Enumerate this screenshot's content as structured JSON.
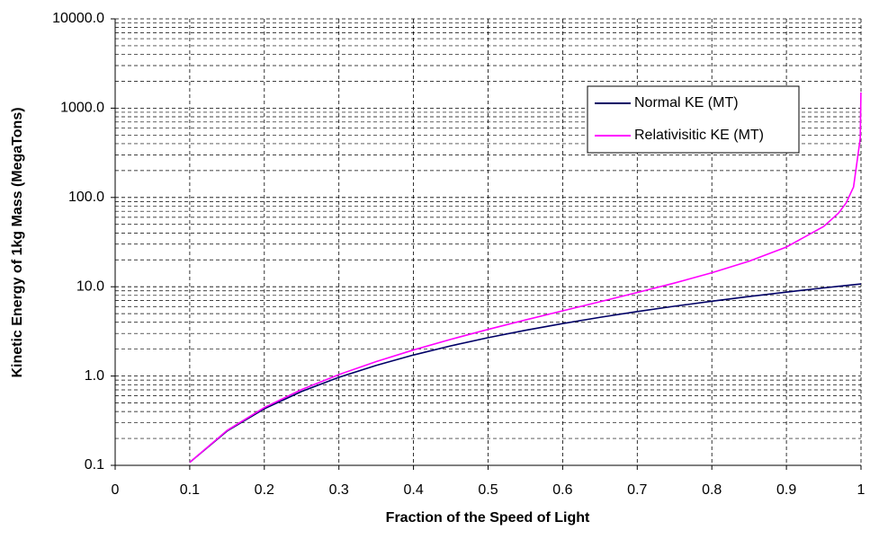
{
  "chart_data": {
    "type": "line",
    "x_label": "Fraction of the Speed of Light",
    "y_label": "Kinetic Energy of 1kg Mass (MegaTons)",
    "x": [
      0.1,
      0.15,
      0.2,
      0.25,
      0.3,
      0.35,
      0.4,
      0.45,
      0.5,
      0.55,
      0.6,
      0.65,
      0.7,
      0.75,
      0.8,
      0.85,
      0.9,
      0.95,
      0.97,
      0.98,
      0.99,
      0.999,
      0.9999
    ],
    "series": [
      {
        "name": "Normal KE (MT)",
        "color": "#000066",
        "values": [
          0.108,
          0.242,
          0.43,
          0.672,
          0.968,
          1.317,
          1.721,
          2.178,
          2.689,
          3.253,
          3.872,
          4.544,
          5.27,
          6.05,
          6.883,
          7.771,
          8.712,
          9.706,
          10.119,
          10.329,
          10.541,
          10.733,
          10.753
        ]
      },
      {
        "name": "Relativisitic KE (MT)",
        "color": "#ff00ff",
        "values": [
          0.108,
          0.246,
          0.444,
          0.706,
          1.039,
          1.452,
          1.96,
          2.577,
          3.328,
          4.247,
          5.378,
          6.793,
          8.612,
          11.01,
          14.34,
          19.32,
          27.84,
          47.38,
          66.97,
          86.58,
          130.97,
          459.6,
          1499.5
        ]
      }
    ],
    "xlim": [
      0,
      1
    ],
    "xticks": [
      0,
      0.1,
      0.2,
      0.3,
      0.4,
      0.5,
      0.6,
      0.7,
      0.8,
      0.9,
      1
    ],
    "ylim": [
      0.1,
      10000
    ],
    "log_y": true,
    "yticks": [
      0.1,
      {
        "value": 1,
        "label": "1.0"
      },
      {
        "value": 10,
        "label": "10.0"
      },
      {
        "value": 100,
        "label": "100.0"
      },
      {
        "value": 1000,
        "label": "1000.0"
      },
      {
        "value": 10000,
        "label": "10000.0"
      }
    ],
    "grid": true,
    "legend": "upper right"
  }
}
